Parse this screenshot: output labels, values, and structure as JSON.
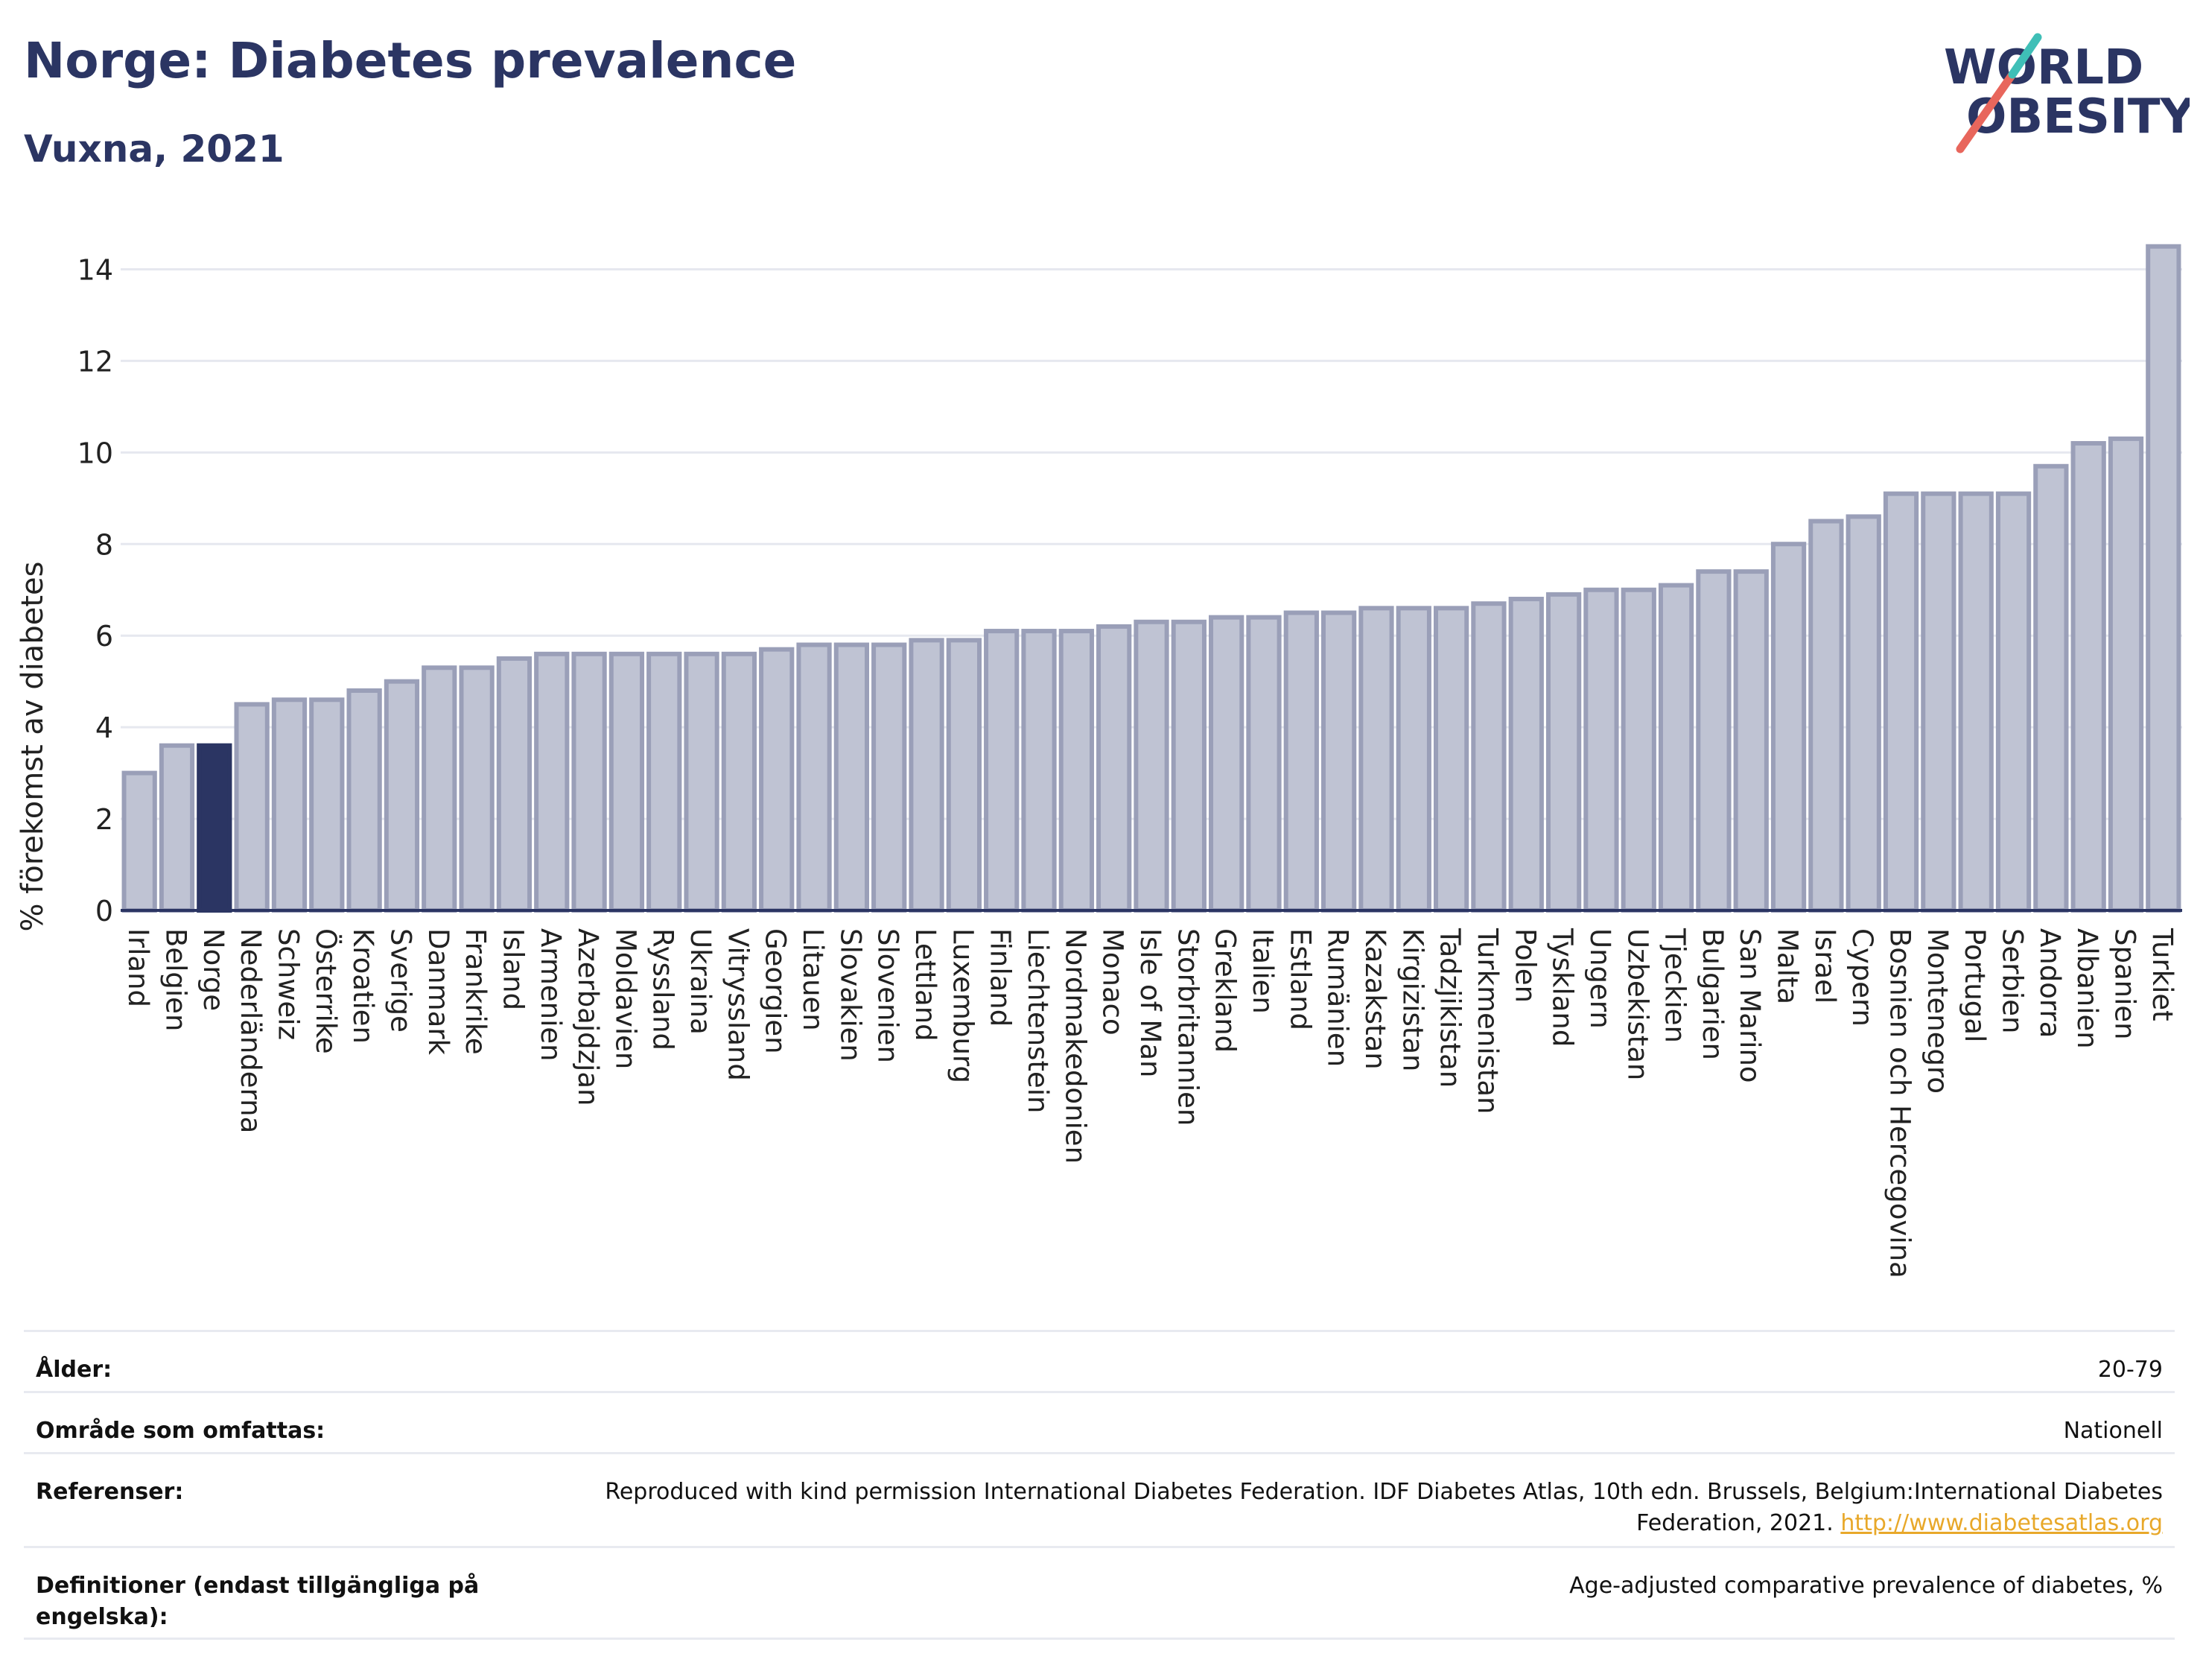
{
  "header": {
    "title": "Norge: Diabetes prevalence",
    "subtitle": "Vuxna, 2021"
  },
  "logo": {
    "line1": "WORLD",
    "line2": "OBESITY",
    "colors": {
      "text": "#2b3563",
      "slash_red": "#e8665c",
      "slash_teal": "#3fbfb7"
    }
  },
  "chart_data": {
    "type": "bar",
    "ylabel": "% förekomst av diabetes",
    "xlabel": "",
    "ylim": [
      0,
      15
    ],
    "yticks": [
      0,
      2,
      4,
      6,
      8,
      10,
      12,
      14
    ],
    "grid": true,
    "highlight": "Norge",
    "colors": {
      "bar": "#bfc3d3",
      "bar_border": "#9a9fb8",
      "highlight": "#2b3563",
      "grid": "#e6e8ef",
      "axis": "#2b3563"
    },
    "categories": [
      "Irland",
      "Belgien",
      "Norge",
      "Nederländerna",
      "Schweiz",
      "Österrike",
      "Kroatien",
      "Sverige",
      "Danmark",
      "Frankrike",
      "Island",
      "Armenien",
      "Azerbajdzjan",
      "Moldavien",
      "Ryssland",
      "Ukraina",
      "Vitryssland",
      "Georgien",
      "Litauen",
      "Slovakien",
      "Slovenien",
      "Lettland",
      "Luxemburg",
      "Finland",
      "Liechtenstein",
      "Nordmakedonien",
      "Monaco",
      "Isle of Man",
      "Storbritannien",
      "Grekland",
      "Italien",
      "Estland",
      "Rumänien",
      "Kazakstan",
      "Kirgizistan",
      "Tadzjikistan",
      "Turkmenistan",
      "Polen",
      "Tyskland",
      "Ungern",
      "Uzbekistan",
      "Tjeckien",
      "Bulgarien",
      "San Marino",
      "Malta",
      "Israel",
      "Cypern",
      "Bosnien och Hercegovina",
      "Montenegro",
      "Portugal",
      "Serbien",
      "Andorra",
      "Albanien",
      "Spanien",
      "Turkiet"
    ],
    "values": [
      3.0,
      3.6,
      3.6,
      4.5,
      4.6,
      4.6,
      4.8,
      5.0,
      5.3,
      5.3,
      5.5,
      5.6,
      5.6,
      5.6,
      5.6,
      5.6,
      5.6,
      5.7,
      5.8,
      5.8,
      5.8,
      5.9,
      5.9,
      6.1,
      6.1,
      6.1,
      6.2,
      6.3,
      6.3,
      6.4,
      6.4,
      6.5,
      6.5,
      6.6,
      6.6,
      6.6,
      6.7,
      6.8,
      6.9,
      7.0,
      7.0,
      7.1,
      7.4,
      7.4,
      8.0,
      8.5,
      8.6,
      9.1,
      9.1,
      9.1,
      9.1,
      9.7,
      10.2,
      10.3,
      14.5
    ]
  },
  "meta": {
    "rows": [
      {
        "label": "Ålder:",
        "value": "20-79"
      },
      {
        "label": "Område som omfattas:",
        "value": "Nationell"
      },
      {
        "label": "Referenser:",
        "value": "Reproduced with kind permission International Diabetes Federation.  IDF Diabetes Atlas, 10th edn. Brussels, Belgium:International Diabetes Federation, 2021.",
        "link": "http://www.diabetesatlas.org"
      },
      {
        "label": "Definitioner (endast tillgängliga på engelska):",
        "value": "Age-adjusted comparative prevalence of diabetes, %"
      }
    ]
  }
}
